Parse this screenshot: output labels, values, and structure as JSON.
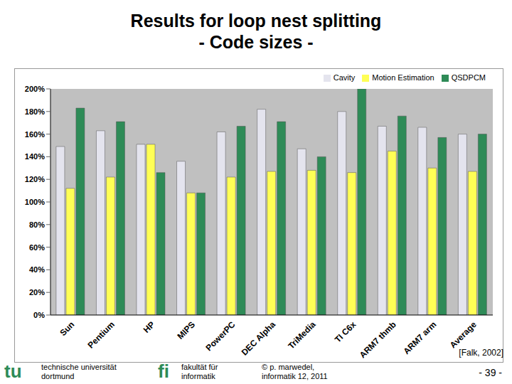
{
  "chart_data": {
    "type": "bar",
    "title": [
      "Results for loop nest splitting",
      "- Code sizes -"
    ],
    "categories": [
      "Sun",
      "Pentium",
      "HP",
      "MIPS",
      "PowerPC",
      "DEC Alpha",
      "TriMedia",
      "TI C6x",
      "ARM7 thmb",
      "ARM7 arm",
      "Average"
    ],
    "series": [
      {
        "name": "Cavity",
        "color": "#e4e4ee",
        "values": [
          149,
          163,
          151,
          136,
          162,
          182,
          147,
          180,
          167,
          166,
          160
        ]
      },
      {
        "name": "Motion Estimation",
        "color": "#ffff55",
        "values": [
          112,
          122,
          151,
          108,
          122,
          127,
          128,
          126,
          145,
          130,
          127
        ]
      },
      {
        "name": "QSDPCM",
        "color": "#2e8b57",
        "values": [
          183,
          171,
          126,
          108,
          167,
          171,
          140,
          200,
          176,
          157,
          160
        ]
      }
    ],
    "ylim": [
      0,
      200
    ],
    "yticks": [
      {
        "value": 0,
        "label": "0%"
      },
      {
        "value": 20,
        "label": "20%"
      },
      {
        "value": 40,
        "label": "40%"
      },
      {
        "value": 60,
        "label": "60%"
      },
      {
        "value": 80,
        "label": "80%"
      },
      {
        "value": 100,
        "label": "100%"
      },
      {
        "value": 120,
        "label": "120%"
      },
      {
        "value": 140,
        "label": "140%"
      },
      {
        "value": 160,
        "label": "160%"
      },
      {
        "value": 180,
        "label": "180%"
      },
      {
        "value": 200,
        "label": "200%"
      }
    ],
    "grid": false,
    "legend": "upper right"
  },
  "source": "[Falk, 2002]",
  "footer": {
    "logo_left": "tu",
    "university": [
      "technische universität",
      "dortmund"
    ],
    "logo_right": "fi",
    "faculty": [
      "fakultät für",
      "informatik"
    ],
    "copyright": [
      "© p. marwedel,",
      "informatik 12, 2011"
    ],
    "page": "- 39 -"
  }
}
